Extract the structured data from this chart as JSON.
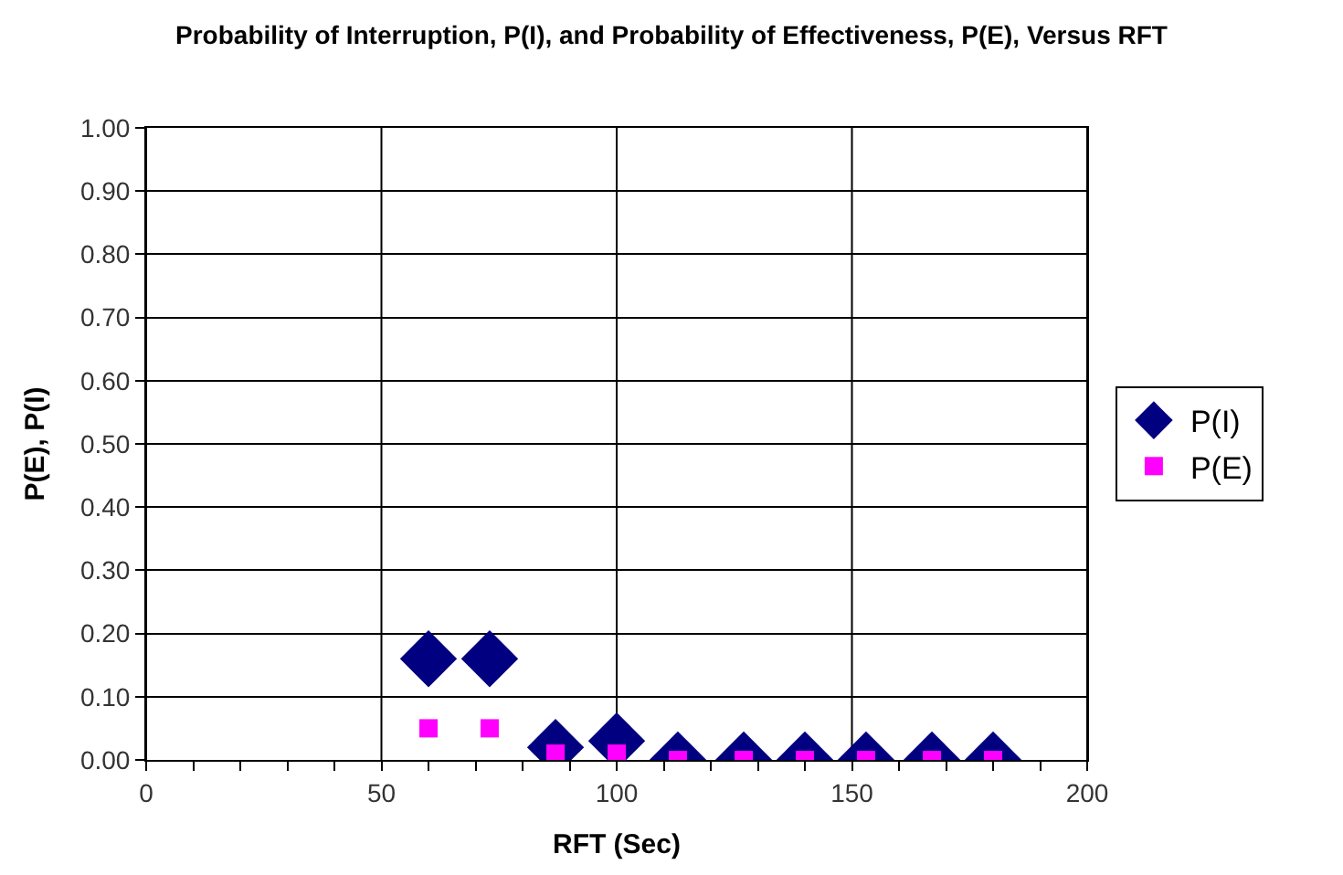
{
  "chart_data": {
    "type": "scatter",
    "title": "Probability of Interruption, P(I), and Probability of Effectiveness, P(E), Versus RFT",
    "xlabel": "RFT (Sec)",
    "ylabel": "P(E), P(I)",
    "x": [
      60,
      73,
      87,
      100,
      113,
      127,
      140,
      153,
      167,
      180
    ],
    "series": [
      {
        "name": "P(I)",
        "color": "#000080",
        "marker": "diamond",
        "values": [
          0.16,
          0.16,
          0.02,
          0.03,
          0,
          0,
          0,
          0,
          0,
          0
        ]
      },
      {
        "name": "P(E)",
        "color": "#ff00ff",
        "marker": "square",
        "values": [
          0.05,
          0.05,
          0.01,
          0.01,
          0,
          0,
          0,
          0,
          0,
          0
        ]
      }
    ],
    "xlim": [
      0,
      200
    ],
    "xticks": [
      0,
      {
        "value": 10,
        "label": null
      },
      {
        "value": 20,
        "label": null
      },
      {
        "value": 30,
        "label": null
      },
      {
        "value": 40,
        "label": null
      },
      50,
      {
        "value": 60,
        "label": null
      },
      {
        "value": 70,
        "label": null
      },
      {
        "value": 80,
        "label": null
      },
      {
        "value": 90,
        "label": null
      },
      100,
      {
        "value": 110,
        "label": null
      },
      {
        "value": 120,
        "label": null
      },
      {
        "value": 130,
        "label": null
      },
      {
        "value": 140,
        "label": null
      },
      150,
      {
        "value": 160,
        "label": null
      },
      {
        "value": 170,
        "label": null
      },
      {
        "value": 180,
        "label": null
      },
      {
        "value": 190,
        "label": null
      },
      200
    ],
    "ylim": [
      0,
      1
    ],
    "yticks": [
      {
        "value": 0,
        "label": "0.00"
      },
      {
        "value": 0.1,
        "label": "0.10"
      },
      {
        "value": 0.2,
        "label": "0.20"
      },
      {
        "value": 0.3,
        "label": "0.30"
      },
      {
        "value": 0.4,
        "label": "0.40"
      },
      {
        "value": 0.5,
        "label": "0.50"
      },
      {
        "value": 0.6,
        "label": "0.60"
      },
      {
        "value": 0.7,
        "label": "0.70"
      },
      {
        "value": 0.8,
        "label": "0.80"
      },
      {
        "value": 0.9,
        "label": "0.90"
      },
      {
        "value": 1,
        "label": "1.00"
      }
    ],
    "grid": true,
    "legend": "right"
  }
}
